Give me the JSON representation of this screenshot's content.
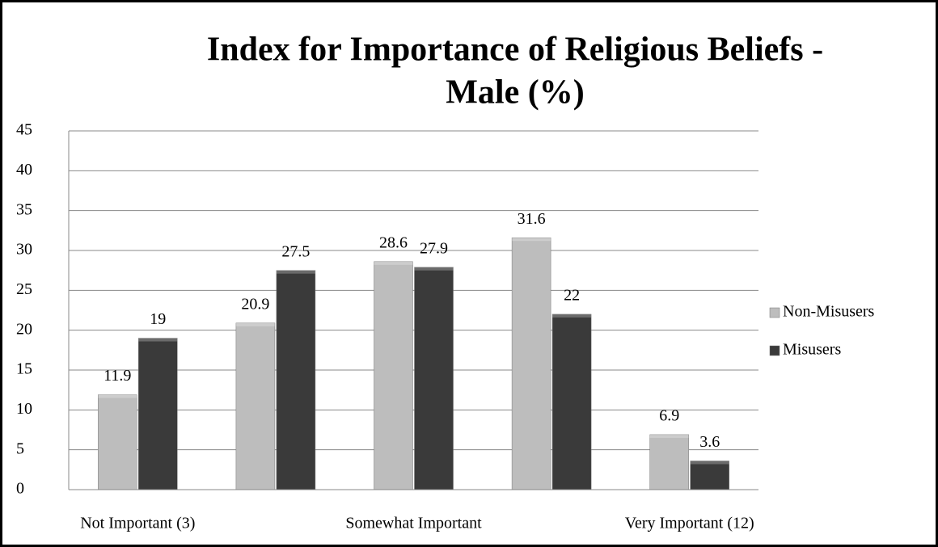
{
  "chart_data": {
    "type": "bar",
    "title": [
      "Index for Importance of Religious Beliefs -",
      "Male (%)"
    ],
    "categories": [
      "Not Important (3)",
      null,
      "Somewhat Important",
      null,
      "Very Important (12)"
    ],
    "series": [
      {
        "name": "Non-Misusers",
        "color": "#bdbdbd",
        "values": [
          11.9,
          20.9,
          28.6,
          31.6,
          6.9
        ]
      },
      {
        "name": "Misusers",
        "color": "#3a3a3a",
        "values": [
          19,
          27.5,
          27.9,
          22,
          3.6
        ]
      }
    ],
    "ylim": [
      0,
      45
    ],
    "yticks": [
      0,
      5,
      10,
      15,
      20,
      25,
      30,
      35,
      40,
      45
    ],
    "grid": true,
    "legend": "right"
  }
}
